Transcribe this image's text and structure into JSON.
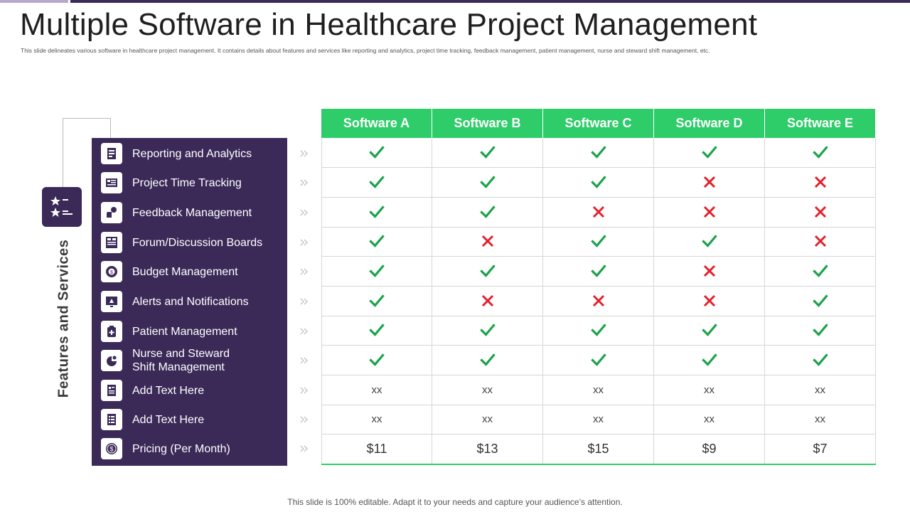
{
  "title": "Multiple Software in Healthcare Project Management",
  "subtitle": "This slide delineates various software in healthcare project management. It contains details about features and services like reporting and analytics, project time tracking, feedback management, patient management, nurse and steward shift management, etc.",
  "side_label": "Features and Services",
  "features": [
    {
      "label": "Reporting and Analytics",
      "icon": "report-icon"
    },
    {
      "label": "Project Time Tracking",
      "icon": "time-tracking-icon"
    },
    {
      "label": "Feedback Management",
      "icon": "feedback-icon"
    },
    {
      "label": "Forum/Discussion Boards",
      "icon": "forum-icon"
    },
    {
      "label": "Budget Management",
      "icon": "budget-icon"
    },
    {
      "label": "Alerts and Notifications",
      "icon": "alert-icon"
    },
    {
      "label": "Patient Management",
      "icon": "patient-icon"
    },
    {
      "label": "Nurse and Steward Shift Management",
      "icon": "shift-icon"
    },
    {
      "label": "Add Text Here",
      "icon": "document-icon"
    },
    {
      "label": "Add Text Here",
      "icon": "checklist-icon"
    },
    {
      "label": "Pricing (Per Month)",
      "icon": "pricing-icon"
    }
  ],
  "software": [
    "Software A",
    "Software B",
    "Software C",
    "Software D",
    "Software E"
  ],
  "matrix": [
    [
      "check",
      "check",
      "check",
      "check",
      "check"
    ],
    [
      "check",
      "check",
      "check",
      "cross",
      "cross"
    ],
    [
      "check",
      "check",
      "cross",
      "cross",
      "cross"
    ],
    [
      "check",
      "cross",
      "check",
      "check",
      "cross"
    ],
    [
      "check",
      "check",
      "check",
      "cross",
      "check"
    ],
    [
      "check",
      "cross",
      "cross",
      "cross",
      "check"
    ],
    [
      "check",
      "check",
      "check",
      "check",
      "check"
    ],
    [
      "check",
      "check",
      "check",
      "check",
      "check"
    ],
    [
      "xx",
      "xx",
      "xx",
      "xx",
      "xx"
    ],
    [
      "xx",
      "xx",
      "xx",
      "xx",
      "xx"
    ],
    [
      "$11",
      "$13",
      "$15",
      "$9",
      "$7"
    ]
  ],
  "colors": {
    "header_green": "#2fcc6a",
    "panel_purple": "#3b2a58",
    "check": "#1aa34a",
    "cross": "#e3202a"
  },
  "footer": "This slide is 100% editable. Adapt it to your needs and capture your audience’s attention."
}
